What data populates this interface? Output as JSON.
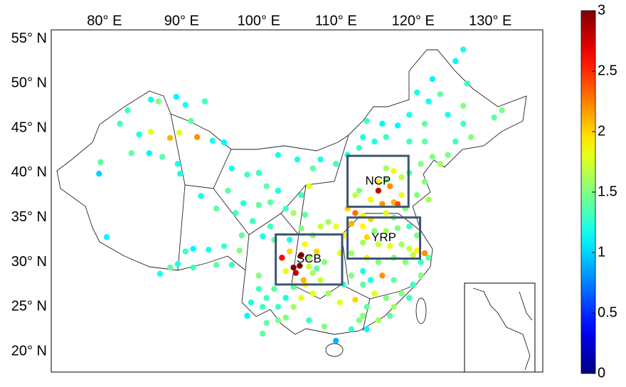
{
  "map": {
    "xlim": [
      73.1,
      136.8
    ],
    "ylim": [
      17.7,
      56.0
    ],
    "xticks": [
      {
        "value": 80,
        "label": "80° E"
      },
      {
        "value": 90,
        "label": "90° E"
      },
      {
        "value": 100,
        "label": "100° E"
      },
      {
        "value": 110,
        "label": "110° E"
      },
      {
        "value": 120,
        "label": "120° E"
      },
      {
        "value": 130,
        "label": "130° E"
      }
    ],
    "yticks": [
      {
        "value": 20,
        "label": "20° N"
      },
      {
        "value": 25,
        "label": "25° N"
      },
      {
        "value": 30,
        "label": "30° N"
      },
      {
        "value": 35,
        "label": "35° N"
      },
      {
        "value": 40,
        "label": "40° N"
      },
      {
        "value": 45,
        "label": "45° N"
      },
      {
        "value": 50,
        "label": "50° N"
      },
      {
        "value": 55,
        "label": "55° N"
      }
    ],
    "colorbar": {
      "lim": [
        0,
        3
      ],
      "ticks": [
        0,
        0.5,
        1,
        1.5,
        2,
        2.5,
        3
      ]
    },
    "regions": [
      {
        "label": "NCP",
        "lon": [
          111.5,
          119.4
        ],
        "lat": [
          36.2,
          41.9
        ]
      },
      {
        "label": "YRP",
        "lon": [
          111.5,
          120.9
        ],
        "lat": [
          30.4,
          35.0
        ]
      },
      {
        "label": "SCB",
        "lon": [
          102.2,
          110.8
        ],
        "lat": [
          27.5,
          33.1
        ]
      }
    ],
    "stations": [
      [
        83.0,
        47.0,
        1.3
      ],
      [
        86.0,
        48.2,
        1.2
      ],
      [
        87.0,
        48.0,
        1.5
      ],
      [
        89.3,
        48.5,
        1.1
      ],
      [
        90.5,
        47.6,
        1.2
      ],
      [
        82.0,
        45.5,
        1.3
      ],
      [
        84.5,
        44.3,
        1.2
      ],
      [
        86.0,
        44.6,
        1.8
      ],
      [
        88.5,
        43.9,
        2.1
      ],
      [
        89.7,
        44.5,
        1.8
      ],
      [
        91.2,
        45.8,
        1.4
      ],
      [
        93.0,
        48.0,
        1.3
      ],
      [
        92.0,
        44.0,
        2.2
      ],
      [
        94.0,
        43.6,
        1.2
      ],
      [
        95.5,
        43.4,
        1.1
      ],
      [
        83.5,
        42.2,
        1.4
      ],
      [
        85.8,
        42.2,
        1.1
      ],
      [
        87.5,
        41.8,
        1.4
      ],
      [
        89.5,
        41.0,
        1.2
      ],
      [
        89.8,
        39.9,
        1.2
      ],
      [
        79.5,
        41.2,
        1.4
      ],
      [
        79.3,
        39.9,
        1.0
      ],
      [
        80.3,
        32.8,
        1.1
      ],
      [
        87.2,
        28.7,
        1.2
      ],
      [
        88.5,
        29.4,
        1.4
      ],
      [
        89.5,
        29.8,
        1.2
      ],
      [
        90.5,
        31.2,
        1.3
      ],
      [
        91.5,
        31.5,
        1.1
      ],
      [
        93.5,
        31.4,
        1.2
      ],
      [
        95.5,
        31.8,
        1.3
      ],
      [
        97.5,
        31.3,
        1.5
      ],
      [
        96.5,
        29.7,
        1.3
      ],
      [
        91.5,
        29.4,
        1.3
      ],
      [
        94.5,
        29.7,
        1.4
      ],
      [
        92.5,
        37.4,
        1.2
      ],
      [
        94.5,
        36.0,
        1.4
      ],
      [
        97.0,
        35.5,
        1.3
      ],
      [
        98.0,
        36.6,
        1.2
      ],
      [
        100.0,
        36.4,
        1.4
      ],
      [
        101.5,
        36.7,
        1.4
      ],
      [
        99.2,
        34.6,
        1.3
      ],
      [
        101.5,
        34.0,
        1.3
      ],
      [
        97.8,
        33.0,
        1.4
      ],
      [
        100.5,
        32.9,
        1.2
      ],
      [
        102.0,
        32.5,
        1.4
      ],
      [
        104.0,
        32.5,
        1.2
      ],
      [
        96.0,
        38.0,
        1.4
      ],
      [
        101.0,
        38.5,
        1.4
      ],
      [
        102.5,
        38.0,
        1.2
      ],
      [
        103.5,
        36.0,
        1.3
      ],
      [
        104.5,
        35.5,
        1.6
      ],
      [
        106.0,
        35.3,
        1.4
      ],
      [
        105.5,
        37.5,
        1.3
      ],
      [
        106.5,
        38.5,
        1.8
      ],
      [
        107.0,
        40.5,
        1.4
      ],
      [
        100.0,
        40.0,
        1.3
      ],
      [
        98.5,
        39.8,
        1.3
      ],
      [
        96.5,
        40.5,
        1.2
      ],
      [
        102.5,
        42.0,
        1.2
      ],
      [
        105.0,
        41.5,
        1.2
      ],
      [
        108.0,
        41.5,
        1.2
      ],
      [
        110.0,
        41.0,
        1.3
      ],
      [
        111.5,
        42.0,
        1.2
      ],
      [
        113.0,
        42.8,
        1.3
      ],
      [
        115.0,
        43.5,
        1.2
      ],
      [
        116.5,
        44.0,
        1.3
      ],
      [
        118.0,
        45.3,
        1.1
      ],
      [
        116.0,
        45.5,
        1.1
      ],
      [
        114.0,
        45.8,
        1.3
      ],
      [
        113.5,
        44.0,
        1.2
      ],
      [
        119.5,
        43.5,
        1.3
      ],
      [
        121.5,
        43.5,
        1.4
      ],
      [
        121.5,
        45.5,
        1.4
      ],
      [
        119.5,
        46.5,
        1.2
      ],
      [
        120.5,
        49.0,
        1.2
      ],
      [
        123.5,
        48.8,
        1.4
      ],
      [
        122.0,
        48.0,
        1.2
      ],
      [
        127.0,
        50.0,
        1.3
      ],
      [
        125.5,
        52.5,
        1.1
      ],
      [
        126.5,
        53.8,
        1.2
      ],
      [
        122.5,
        50.5,
        1.1
      ],
      [
        131.5,
        47.0,
        1.5
      ],
      [
        130.5,
        46.2,
        1.4
      ],
      [
        126.5,
        47.5,
        1.5
      ],
      [
        124.5,
        46.5,
        1.2
      ],
      [
        126.5,
        45.5,
        1.3
      ],
      [
        127.5,
        44.0,
        1.5
      ],
      [
        125.5,
        43.5,
        1.3
      ],
      [
        124.5,
        42.0,
        1.5
      ],
      [
        122.5,
        41.8,
        1.5
      ],
      [
        121.0,
        41.0,
        1.5
      ],
      [
        123.5,
        41.0,
        1.6
      ],
      [
        121.5,
        39.0,
        1.5
      ],
      [
        119.5,
        40.0,
        1.4
      ],
      [
        116.5,
        40.5,
        1.6
      ],
      [
        117.5,
        40.2,
        1.9
      ],
      [
        118.5,
        39.5,
        1.7
      ],
      [
        116.5,
        39.2,
        1.5
      ],
      [
        115.5,
        39.0,
        1.9
      ],
      [
        117.0,
        38.5,
        2.2
      ],
      [
        115.5,
        38.0,
        2.8
      ],
      [
        114.5,
        37.0,
        1.9
      ],
      [
        116.0,
        36.5,
        2.2
      ],
      [
        117.5,
        36.7,
        2.1
      ],
      [
        118.5,
        37.5,
        1.8
      ],
      [
        119.0,
        36.0,
        1.5
      ],
      [
        116.5,
        35.5,
        1.8
      ],
      [
        118.0,
        36.5,
        2.4
      ],
      [
        117.5,
        35.0,
        1.5
      ],
      [
        113.0,
        38.0,
        1.5
      ],
      [
        112.5,
        37.5,
        1.7
      ],
      [
        111.5,
        36.0,
        2.0
      ],
      [
        112.5,
        35.5,
        2.3
      ],
      [
        113.5,
        35.2,
        1.9
      ],
      [
        114.5,
        34.8,
        2.0
      ],
      [
        120.5,
        37.5,
        1.5
      ],
      [
        122.0,
        37.0,
        1.6
      ],
      [
        113.5,
        34.0,
        1.9
      ],
      [
        115.0,
        33.5,
        1.5
      ],
      [
        116.5,
        33.5,
        1.6
      ],
      [
        118.0,
        33.8,
        1.5
      ],
      [
        119.5,
        34.0,
        1.3
      ],
      [
        120.5,
        33.0,
        1.5
      ],
      [
        118.5,
        32.0,
        1.6
      ],
      [
        117.0,
        31.8,
        1.8
      ],
      [
        115.5,
        32.0,
        1.7
      ],
      [
        114.0,
        32.8,
        2.0
      ],
      [
        113.5,
        32.2,
        1.6
      ],
      [
        119.5,
        31.5,
        1.7
      ],
      [
        120.5,
        31.3,
        1.9
      ],
      [
        121.5,
        31.0,
        2.2
      ],
      [
        121.0,
        30.0,
        1.3
      ],
      [
        122.0,
        30.5,
        1.4
      ],
      [
        119.0,
        30.0,
        1.5
      ],
      [
        117.5,
        30.5,
        1.5
      ],
      [
        112.0,
        34.3,
        2.1
      ],
      [
        111.0,
        33.0,
        1.9
      ],
      [
        110.0,
        34.0,
        1.8
      ],
      [
        109.0,
        34.5,
        1.6
      ],
      [
        108.0,
        34.0,
        1.7
      ],
      [
        107.0,
        33.0,
        1.5
      ],
      [
        105.5,
        33.8,
        1.5
      ],
      [
        110.5,
        31.0,
        1.8
      ],
      [
        112.0,
        31.0,
        1.6
      ],
      [
        114.0,
        30.5,
        1.8
      ],
      [
        115.5,
        30.0,
        1.5
      ],
      [
        113.5,
        29.0,
        1.2
      ],
      [
        112.0,
        28.5,
        1.5
      ],
      [
        111.0,
        27.5,
        1.3
      ],
      [
        113.5,
        27.5,
        1.4
      ],
      [
        114.5,
        28.0,
        1.2
      ],
      [
        116.0,
        28.5,
        2.2
      ],
      [
        117.5,
        28.0,
        1.4
      ],
      [
        115.0,
        26.5,
        1.8
      ],
      [
        116.5,
        26.0,
        1.5
      ],
      [
        118.5,
        26.5,
        1.5
      ],
      [
        119.5,
        26.0,
        1.3
      ],
      [
        120.0,
        27.5,
        1.3
      ],
      [
        121.0,
        28.5,
        1.5
      ],
      [
        117.5,
        25.0,
        1.6
      ],
      [
        114.0,
        25.0,
        1.4
      ],
      [
        112.5,
        25.8,
        2.0
      ],
      [
        110.5,
        25.5,
        1.8
      ],
      [
        109.0,
        26.5,
        1.6
      ],
      [
        107.0,
        26.5,
        1.8
      ],
      [
        106.0,
        27.5,
        1.9
      ],
      [
        108.0,
        28.0,
        1.7
      ],
      [
        113.0,
        23.5,
        1.5
      ],
      [
        112.0,
        22.5,
        1.3
      ],
      [
        115.5,
        23.5,
        1.6
      ],
      [
        117.0,
        24.0,
        1.4
      ],
      [
        114.0,
        22.5,
        1.1
      ],
      [
        120.0,
        30.8,
        1.7
      ],
      [
        108.5,
        22.8,
        1.5
      ],
      [
        106.5,
        23.5,
        1.3
      ],
      [
        110.0,
        21.2,
        0.9
      ],
      [
        113.5,
        24.0,
        1.5
      ],
      [
        103.0,
        30.5,
        2.6
      ],
      [
        104.0,
        31.2,
        2.0
      ],
      [
        105.5,
        30.8,
        2.9
      ],
      [
        106.5,
        30.5,
        1.6
      ],
      [
        107.5,
        31.2,
        2.0
      ],
      [
        108.5,
        30.0,
        1.5
      ],
      [
        104.5,
        29.4,
        3.0
      ],
      [
        105.3,
        29.6,
        3.0
      ],
      [
        104.8,
        28.8,
        2.8
      ],
      [
        103.5,
        29.0,
        1.8
      ],
      [
        106.5,
        29.5,
        1.7
      ],
      [
        107.5,
        29.3,
        1.4
      ],
      [
        105.8,
        28.0,
        2.1
      ],
      [
        107.0,
        28.8,
        1.6
      ],
      [
        106.0,
        32.0,
        1.9
      ],
      [
        100.0,
        28.5,
        1.5
      ],
      [
        102.0,
        27.0,
        1.4
      ],
      [
        100.0,
        27.0,
        1.3
      ],
      [
        101.0,
        26.0,
        1.3
      ],
      [
        99.0,
        25.5,
        1.2
      ],
      [
        100.5,
        25.0,
        1.3
      ],
      [
        102.5,
        25.0,
        1.3
      ],
      [
        103.5,
        26.0,
        1.2
      ],
      [
        104.5,
        27.2,
        1.4
      ],
      [
        98.5,
        24.0,
        1.1
      ],
      [
        101.0,
        23.2,
        1.4
      ],
      [
        102.5,
        23.5,
        1.5
      ],
      [
        103.5,
        23.8,
        1.5
      ],
      [
        100.5,
        22.0,
        1.4
      ],
      [
        104.5,
        25.0,
        1.6
      ],
      [
        105.5,
        26.0,
        1.8
      ]
    ]
  }
}
